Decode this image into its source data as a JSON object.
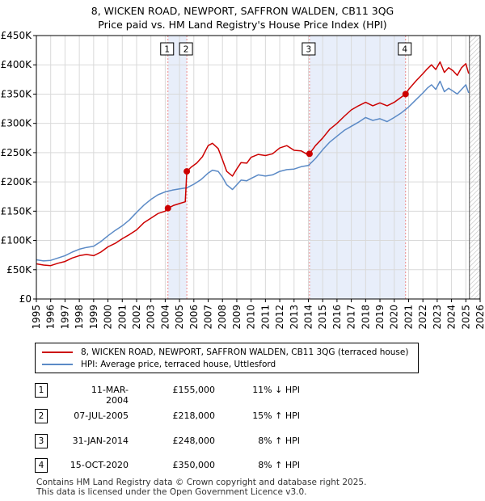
{
  "title": "8, WICKEN ROAD, NEWPORT, SAFFRON WALDEN, CB11 3QG",
  "subtitle": "Price paid vs. HM Land Registry's House Price Index (HPI)",
  "colors": {
    "property": "#cc0000",
    "hpi": "#5b8ac6",
    "shade": "#e8eefa",
    "dash": "#ee8888"
  },
  "chart_data": {
    "type": "line",
    "title": "8, WICKEN ROAD, NEWPORT, SAFFRON WALDEN, CB11 3QG",
    "subtitle": "Price paid vs. HM Land Registry's House Price Index (HPI)",
    "xlim": [
      1995,
      2026
    ],
    "ylim": [
      0,
      450000
    ],
    "x_ticks": [
      1995,
      1996,
      1997,
      1998,
      1999,
      2000,
      2001,
      2002,
      2003,
      2004,
      2005,
      2006,
      2007,
      2008,
      2009,
      2010,
      2011,
      2012,
      2013,
      2014,
      2015,
      2016,
      2017,
      2018,
      2019,
      2020,
      2021,
      2022,
      2023,
      2024,
      2025,
      2026
    ],
    "y_ticks": [
      0,
      50000,
      100000,
      150000,
      200000,
      250000,
      300000,
      350000,
      400000,
      450000
    ],
    "y_tick_labels": [
      "£0",
      "£50K",
      "£100K",
      "£150K",
      "£200K",
      "£250K",
      "£300K",
      "£350K",
      "£400K",
      "£450K"
    ],
    "shaded_ranges": [
      [
        2004.19,
        2005.51
      ],
      [
        2014.08,
        2020.79
      ]
    ],
    "future_hatch_from": 2025.25,
    "series": [
      {
        "name": "8, WICKEN ROAD, NEWPORT, SAFFRON WALDEN, CB11 3QG (terraced house)",
        "color": "#cc0000",
        "x": [
          1995.0,
          1995.5,
          1996.0,
          1996.5,
          1997.0,
          1997.5,
          1998.0,
          1998.5,
          1999.0,
          1999.5,
          2000.0,
          2000.5,
          2001.0,
          2001.5,
          2002.0,
          2002.5,
          2003.0,
          2003.5,
          2004.0,
          2004.19,
          2004.6,
          2005.0,
          2005.4,
          2005.51,
          2005.8,
          2006.2,
          2006.6,
          2007.0,
          2007.3,
          2007.7,
          2008.0,
          2008.3,
          2008.7,
          2009.0,
          2009.3,
          2009.7,
          2010.0,
          2010.5,
          2011.0,
          2011.5,
          2012.0,
          2012.5,
          2013.0,
          2013.5,
          2014.0,
          2014.08,
          2014.5,
          2015.0,
          2015.5,
          2016.0,
          2016.5,
          2017.0,
          2017.5,
          2018.0,
          2018.5,
          2019.0,
          2019.5,
          2020.0,
          2020.5,
          2020.79,
          2021.0,
          2021.5,
          2022.0,
          2022.3,
          2022.6,
          2022.9,
          2023.2,
          2023.5,
          2023.8,
          2024.1,
          2024.4,
          2024.7,
          2025.0,
          2025.2
        ],
        "values": [
          60000,
          58000,
          57000,
          61000,
          64000,
          70000,
          74000,
          76000,
          74000,
          80000,
          89000,
          95000,
          103000,
          110000,
          118000,
          130000,
          138000,
          146000,
          150000,
          155000,
          160000,
          163000,
          166000,
          218000,
          225000,
          232000,
          243000,
          262000,
          266000,
          257000,
          238000,
          218000,
          210000,
          222000,
          233000,
          232000,
          242000,
          247000,
          245000,
          248000,
          258000,
          262000,
          254000,
          253000,
          246000,
          248000,
          262000,
          275000,
          290000,
          300000,
          312000,
          323000,
          330000,
          336000,
          330000,
          335000,
          330000,
          336000,
          345000,
          350000,
          358000,
          372000,
          385000,
          393000,
          400000,
          392000,
          405000,
          387000,
          395000,
          390000,
          382000,
          395000,
          402000,
          385000
        ]
      },
      {
        "name": "HPI: Average price, terraced house, Uttlesford",
        "color": "#5b8ac6",
        "x": [
          1995.0,
          1995.5,
          1996.0,
          1996.5,
          1997.0,
          1997.5,
          1998.0,
          1998.5,
          1999.0,
          1999.5,
          2000.0,
          2000.5,
          2001.0,
          2001.5,
          2002.0,
          2002.5,
          2003.0,
          2003.5,
          2004.0,
          2004.5,
          2005.0,
          2005.5,
          2006.0,
          2006.5,
          2007.0,
          2007.3,
          2007.7,
          2008.0,
          2008.3,
          2008.7,
          2009.0,
          2009.3,
          2009.7,
          2010.0,
          2010.5,
          2011.0,
          2011.5,
          2012.0,
          2012.5,
          2013.0,
          2013.5,
          2014.0,
          2014.5,
          2015.0,
          2015.5,
          2016.0,
          2016.5,
          2017.0,
          2017.5,
          2018.0,
          2018.5,
          2019.0,
          2019.5,
          2020.0,
          2020.5,
          2021.0,
          2021.5,
          2022.0,
          2022.3,
          2022.6,
          2022.9,
          2023.2,
          2023.5,
          2023.8,
          2024.1,
          2024.4,
          2024.7,
          2025.0,
          2025.2
        ],
        "values": [
          67000,
          65000,
          66000,
          70000,
          74000,
          80000,
          85000,
          88000,
          90000,
          98000,
          108000,
          117000,
          125000,
          135000,
          148000,
          160000,
          170000,
          178000,
          183000,
          186000,
          188000,
          190000,
          196000,
          204000,
          215000,
          220000,
          218000,
          208000,
          195000,
          187000,
          195000,
          203000,
          202000,
          206000,
          212000,
          210000,
          212000,
          218000,
          221000,
          222000,
          226000,
          228000,
          240000,
          255000,
          268000,
          278000,
          288000,
          295000,
          302000,
          310000,
          305000,
          308000,
          303000,
          310000,
          318000,
          328000,
          340000,
          352000,
          360000,
          366000,
          358000,
          372000,
          354000,
          360000,
          355000,
          350000,
          358000,
          366000,
          352000
        ]
      }
    ],
    "sale_markers": [
      {
        "label": "1",
        "x": 2004.19,
        "value": 155000
      },
      {
        "label": "2",
        "x": 2005.51,
        "value": 218000
      },
      {
        "label": "3",
        "x": 2014.08,
        "value": 248000
      },
      {
        "label": "4",
        "x": 2020.79,
        "value": 350000
      }
    ]
  },
  "legend": {
    "property_label": "8, WICKEN ROAD, NEWPORT, SAFFRON WALDEN, CB11 3QG (terraced house)",
    "hpi_label": "HPI: Average price, terraced house, Uttlesford"
  },
  "transactions": [
    {
      "num": "1",
      "date": "11-MAR-2004",
      "price": "£155,000",
      "hpi": "11% ↓ HPI"
    },
    {
      "num": "2",
      "date": "07-JUL-2005",
      "price": "£218,000",
      "hpi": "15% ↑ HPI"
    },
    {
      "num": "3",
      "date": "31-JAN-2014",
      "price": "£248,000",
      "hpi": "8% ↑ HPI"
    },
    {
      "num": "4",
      "date": "15-OCT-2020",
      "price": "£350,000",
      "hpi": "8% ↑ HPI"
    }
  ],
  "footer": {
    "line1": "Contains HM Land Registry data © Crown copyright and database right 2025.",
    "line2": "This data is licensed under the Open Government Licence v3.0."
  }
}
